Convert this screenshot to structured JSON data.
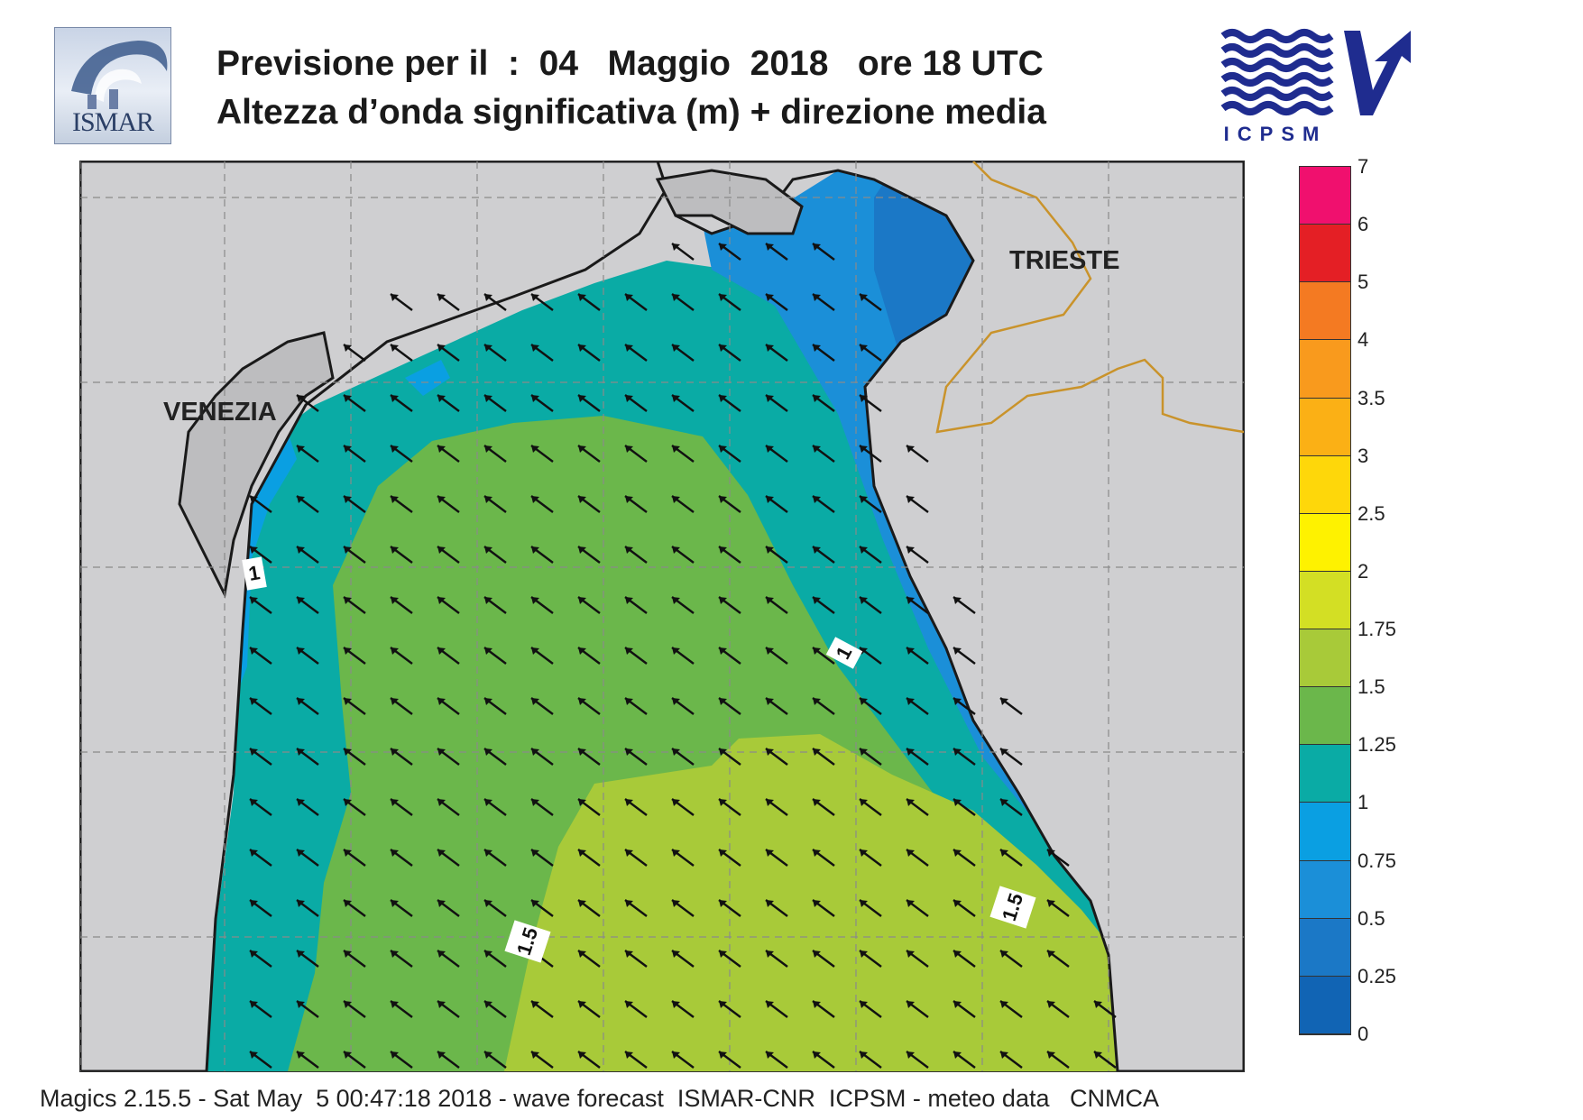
{
  "header": {
    "title_line1": "Previsione per il  :  04   Maggio  2018   ore 18 UTC",
    "title_line2": "Altezza d’onda significativa (m) + direzione media"
  },
  "logos": {
    "left_text": "ISMAR",
    "right_text": "ICPSM"
  },
  "map": {
    "labels": {
      "venezia": "VENEZIA",
      "trieste": "TRIESTE"
    },
    "contour_labels": [
      "1",
      "1",
      "1.5",
      "1.5"
    ],
    "colors": {
      "land": "#cfcfd1",
      "coast": "#1a1a1a",
      "border": "#c9932b",
      "grid": "#8a8a8a"
    }
  },
  "legend": {
    "ticks": [
      "7",
      "6",
      "5",
      "4",
      "3.5",
      "3",
      "2.5",
      "2",
      "1.75",
      "1.5",
      "1.25",
      "1",
      "0.75",
      "0.5",
      "0.25",
      "0"
    ],
    "colors": [
      "#f0106e",
      "#e41f25",
      "#f47a22",
      "#f99a1d",
      "#fbb015",
      "#fed70a",
      "#fef200",
      "#d3df24",
      "#a8ca39",
      "#6bb74b",
      "#0aaba5",
      "#0a9fe2",
      "#1b8fd8",
      "#1b78c6",
      "#1164b4"
    ]
  },
  "footer": {
    "text": "Magics 2.15.5 - Sat May  5 00:47:18 2018 - wave forecast  ISMAR-CNR  ICPSM - meteo data   CNMCA"
  }
}
